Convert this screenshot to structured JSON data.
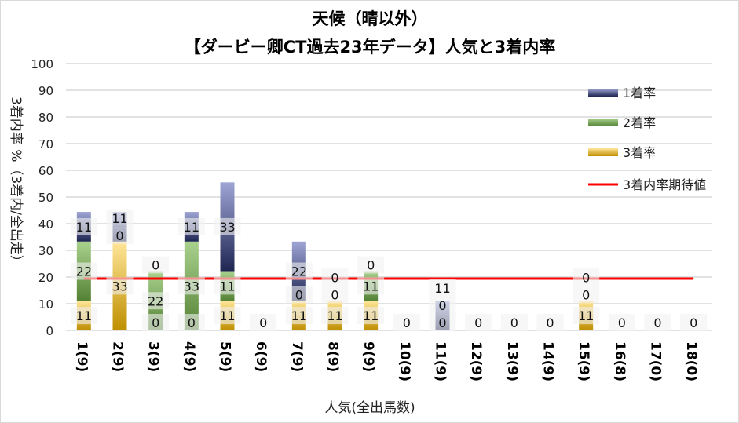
{
  "chart_data": {
    "type": "bar",
    "stacked": true,
    "title": "天候（晴以外）",
    "subtitle": "【ダービー卿CT過去23年データ】人気と3着内率",
    "xlabel": "人気(全出馬数)",
    "ylabel": "3着内率 %（3着内/全出走）",
    "ylim": [
      0,
      100
    ],
    "yticks": [
      0,
      10,
      20,
      30,
      40,
      50,
      60,
      70,
      80,
      90,
      100
    ],
    "grid": true,
    "legend_position": "right",
    "categories": [
      "1(9)",
      "2(9)",
      "3(9)",
      "4(9)",
      "5(9)",
      "6(9)",
      "7(9)",
      "8(9)",
      "9(9)",
      "10(9)",
      "11(9)",
      "12(9)",
      "13(9)",
      "14(9)",
      "15(9)",
      "16(8)",
      "17(0)",
      "18(0)"
    ],
    "series": [
      {
        "name": "3着率",
        "color": "#c9961a",
        "values": [
          11.1,
          33.3,
          0,
          0,
          11.1,
          0,
          11.1,
          11.1,
          11.1,
          0,
          0,
          0,
          0,
          0,
          11.1,
          0,
          0,
          0
        ]
      },
      {
        "name": "2着率",
        "color": "#548235",
        "values": [
          22.2,
          0,
          22.2,
          33.3,
          11.1,
          0,
          0,
          0,
          11.1,
          0,
          0,
          0,
          0,
          0,
          0,
          0,
          0,
          0
        ]
      },
      {
        "name": "1着率",
        "color": "#2f3a80",
        "values": [
          11.1,
          11.1,
          0,
          11.1,
          33.3,
          0,
          22.2,
          0,
          0,
          0,
          11.1,
          0,
          0,
          0,
          0,
          0,
          0,
          0
        ]
      }
    ],
    "line": {
      "name": "3着内率期待値",
      "color": "#ff0000",
      "value": 19.4
    }
  }
}
